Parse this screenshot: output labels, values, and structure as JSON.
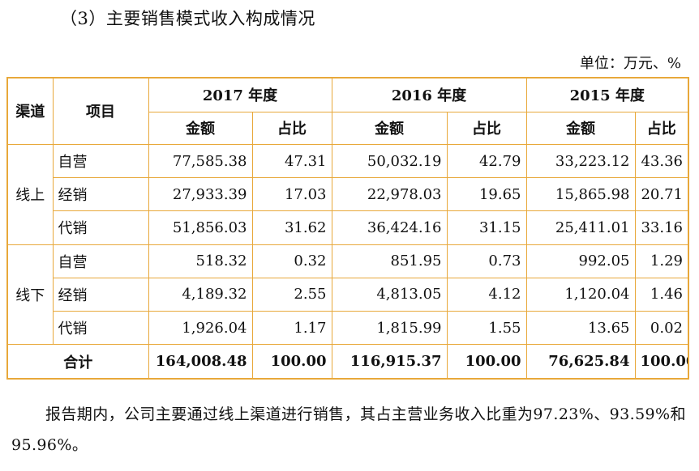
{
  "heading": "（3）主要销售模式收入构成情况",
  "unit": "单位：万元、%",
  "table": {
    "col_channel": "渠道",
    "col_item": "项目",
    "years": [
      "2017 年度",
      "2016 年度",
      "2015 年度"
    ],
    "sub_amount": "金额",
    "sub_ratio": "占比",
    "groups": [
      {
        "channel": "线上",
        "rows": [
          {
            "item": "自营",
            "v": [
              "77,585.38",
              "47.31",
              "50,032.19",
              "42.79",
              "33,223.12",
              "43.36"
            ]
          },
          {
            "item": "经销",
            "v": [
              "27,933.39",
              "17.03",
              "22,978.03",
              "19.65",
              "15,865.98",
              "20.71"
            ]
          },
          {
            "item": "代销",
            "v": [
              "51,856.03",
              "31.62",
              "36,424.16",
              "31.15",
              "25,411.01",
              "33.16"
            ]
          }
        ]
      },
      {
        "channel": "线下",
        "rows": [
          {
            "item": "自营",
            "v": [
              "518.32",
              "0.32",
              "851.95",
              "0.73",
              "992.05",
              "1.29"
            ]
          },
          {
            "item": "经销",
            "v": [
              "4,189.32",
              "2.55",
              "4,813.05",
              "4.12",
              "1,120.04",
              "1.46"
            ]
          },
          {
            "item": "代销",
            "v": [
              "1,926.04",
              "1.17",
              "1,815.99",
              "1.55",
              "13.65",
              "0.02"
            ]
          }
        ]
      }
    ],
    "total": {
      "label": "合计",
      "v": [
        "164,008.48",
        "100.00",
        "116,915.37",
        "100.00",
        "76,625.84",
        "100.00"
      ]
    }
  },
  "paragraph": "报告期内，公司主要通过线上渠道进行销售，其占主营业务收入比重为97.23%、93.59%和 95.96%。"
}
